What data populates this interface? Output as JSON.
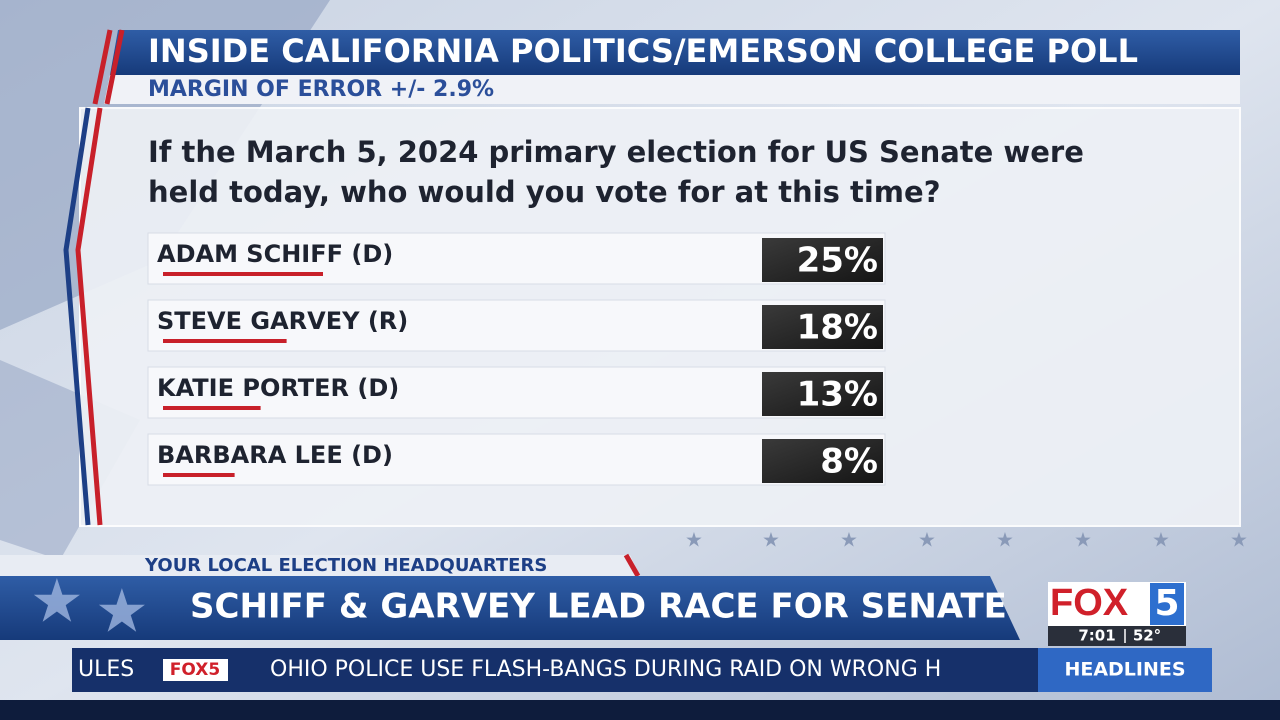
{
  "header": {
    "title": "INSIDE CALIFORNIA POLITICS/EMERSON COLLEGE POLL",
    "subtitle": "MARGIN OF ERROR +/- 2.9%"
  },
  "poll": {
    "question_lines": [
      "If the March 5, 2024 primary election for US Senate were",
      "held today, who would you vote for at this time?"
    ],
    "candidates": [
      "ADAM SCHIFF (D)",
      "STEVE GARVEY (R)",
      "KATIE PORTER (D)",
      "BARBARA LEE (D)"
    ],
    "values": [
      25,
      18,
      13,
      8
    ],
    "value_labels": [
      "25%",
      "18%",
      "13%",
      "8%"
    ]
  },
  "lower_third": {
    "kicker": "YOUR LOCAL ELECTION HEADQUARTERS",
    "headline": "SCHIFF & GARVEY LEAD RACE FOR SENATE"
  },
  "station": {
    "logo": "FOX",
    "logo_number": "5",
    "time": "7:01",
    "temperature": "52°"
  },
  "ticker": {
    "previous": "ULES",
    "logo": "FOX5",
    "story": "OHIO POLICE USE FLASH-BANGS DURING RAID ON WRONG H",
    "section": "HEADLINES"
  }
}
